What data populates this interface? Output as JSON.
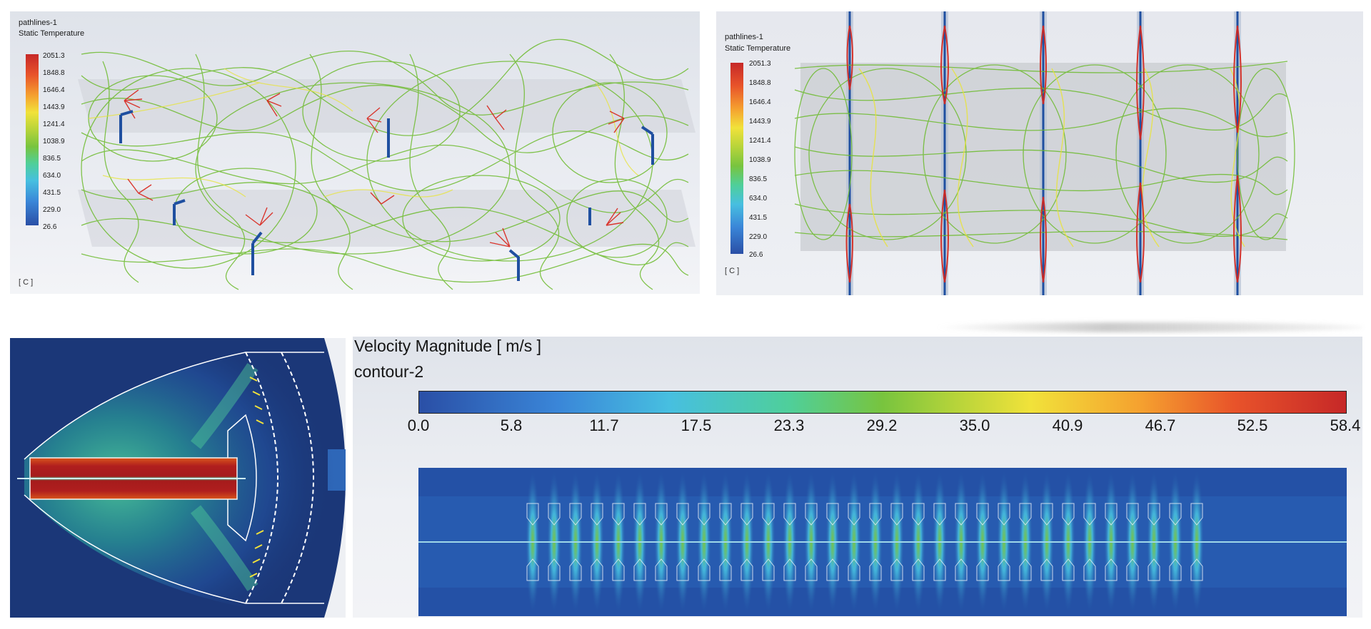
{
  "panels": {
    "top_left": {
      "object_name": "pathlines-1",
      "variable": "Static Temperature",
      "unit": "[ C ]",
      "legend_ticks": [
        "2051.3",
        "1848.8",
        "1646.4",
        "1443.9",
        "1241.4",
        "1038.9",
        "836.5",
        "634.0",
        "431.5",
        "229.0",
        "26.6"
      ]
    },
    "top_right": {
      "object_name": "pathlines-1",
      "variable": "Static Temperature",
      "unit": "[ C ]",
      "legend_ticks": [
        "2051.3",
        "1848.8",
        "1646.4",
        "1443.9",
        "1241.4",
        "1038.9",
        "836.5",
        "634.0",
        "431.5",
        "229.0",
        "26.6"
      ]
    },
    "bottom_left": {},
    "bottom_right": {
      "variable": "Velocity Magnitude [ m/s ]",
      "object_name": "contour-2",
      "colorbar_ticks": [
        "0.0",
        "5.8",
        "11.7",
        "17.5",
        "23.3",
        "29.2",
        "35.0",
        "40.9",
        "46.7",
        "52.5",
        "58.4"
      ]
    }
  },
  "colors": {
    "colormap": [
      "#2a4fa6",
      "#3a86d8",
      "#47bfe0",
      "#4fcf9a",
      "#78c43e",
      "#b7d43a",
      "#f1e23a",
      "#f5a02f",
      "#e8532a",
      "#c62828"
    ],
    "background_plot": "#1b3778",
    "pathline_green": "#6dbb2e",
    "pathline_red": "#d8241a",
    "pathline_yellow": "#e8e43a"
  }
}
